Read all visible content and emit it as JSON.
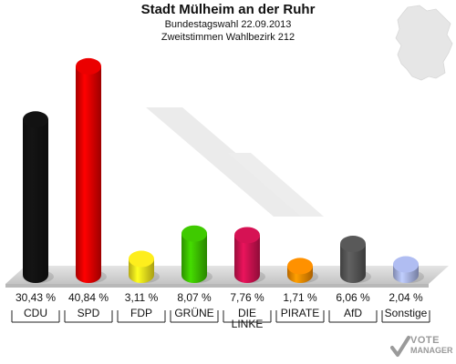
{
  "header": {
    "title": "Stadt Mülheim an der Ruhr",
    "subtitle1": "Bundestagswahl 22.09.2013",
    "subtitle2": "Zweitstimmen Wahlbezirk 212"
  },
  "logo": {
    "line1": "VOTE",
    "line2": "MANAGER"
  },
  "chart_data": {
    "type": "bar",
    "title": "Stadt Mülheim an der Ruhr",
    "subtitle": "Bundestagswahl 22.09.2013 — Zweitstimmen Wahlbezirk 212",
    "categories": [
      "CDU",
      "SPD",
      "FDP",
      "GRÜNE",
      "DIE LINKE",
      "PIRATE",
      "AfD",
      "Sonstige"
    ],
    "category_lines": [
      [
        "CDU"
      ],
      [
        "SPD"
      ],
      [
        "FDP"
      ],
      [
        "GRÜNE"
      ],
      [
        "DIE",
        "LINKE"
      ],
      [
        "PIRATE"
      ],
      [
        "AfD"
      ],
      [
        "Sonstige"
      ]
    ],
    "values": [
      30.43,
      40.84,
      3.11,
      8.07,
      7.76,
      1.71,
      6.06,
      2.04
    ],
    "value_labels": [
      "30,43 %",
      "40,84 %",
      "3,11 %",
      "8,07 %",
      "7,76 %",
      "1,71 %",
      "6,06 %",
      "2,04 %"
    ],
    "colors": [
      "#111111",
      "#e00000",
      "#f2e31c",
      "#3cc000",
      "#cc1150",
      "#f58a00",
      "#555555",
      "#a8b4e6"
    ],
    "unit": "%",
    "xlabel": "",
    "ylabel": "",
    "ylim": [
      0,
      41
    ],
    "grid": false,
    "legend": "none"
  }
}
